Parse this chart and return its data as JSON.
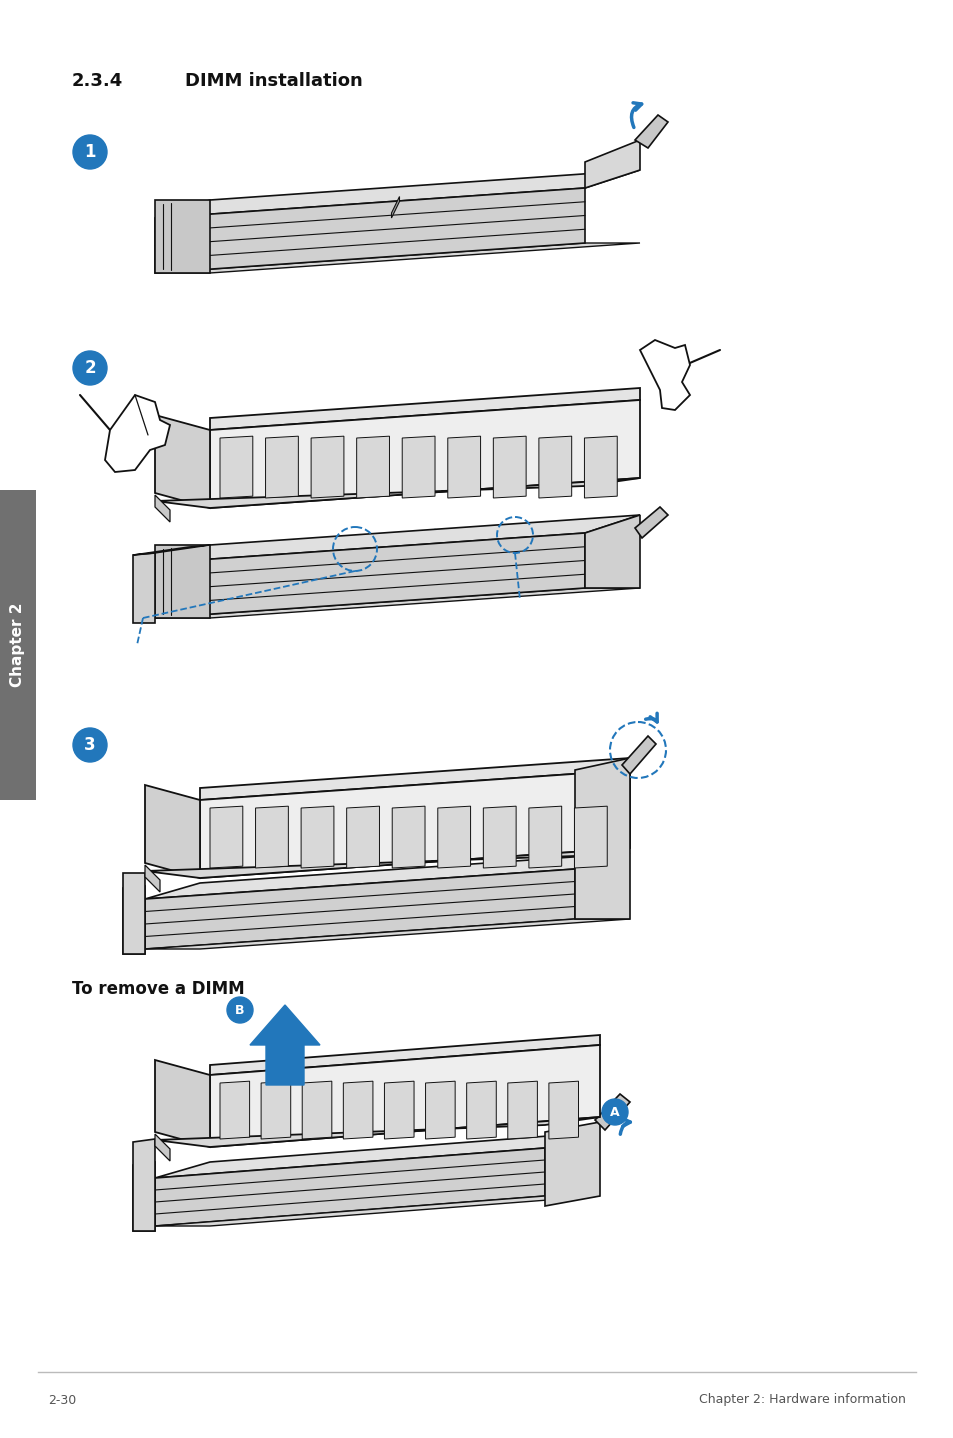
{
  "section_number": "2.3.4",
  "section_title": "DIMM installation",
  "footer_left": "2-30",
  "footer_right": "Chapter 2: Hardware information",
  "remove_label": "To remove a DIMM",
  "bg_color": "#ffffff",
  "blue_color": "#2277bb",
  "gray_tab_color": "#707070",
  "tab_text_color": "#ffffff",
  "tab_text": "Chapter 2",
  "line_color": "#111111",
  "page_width": 9.54,
  "page_height": 14.38
}
